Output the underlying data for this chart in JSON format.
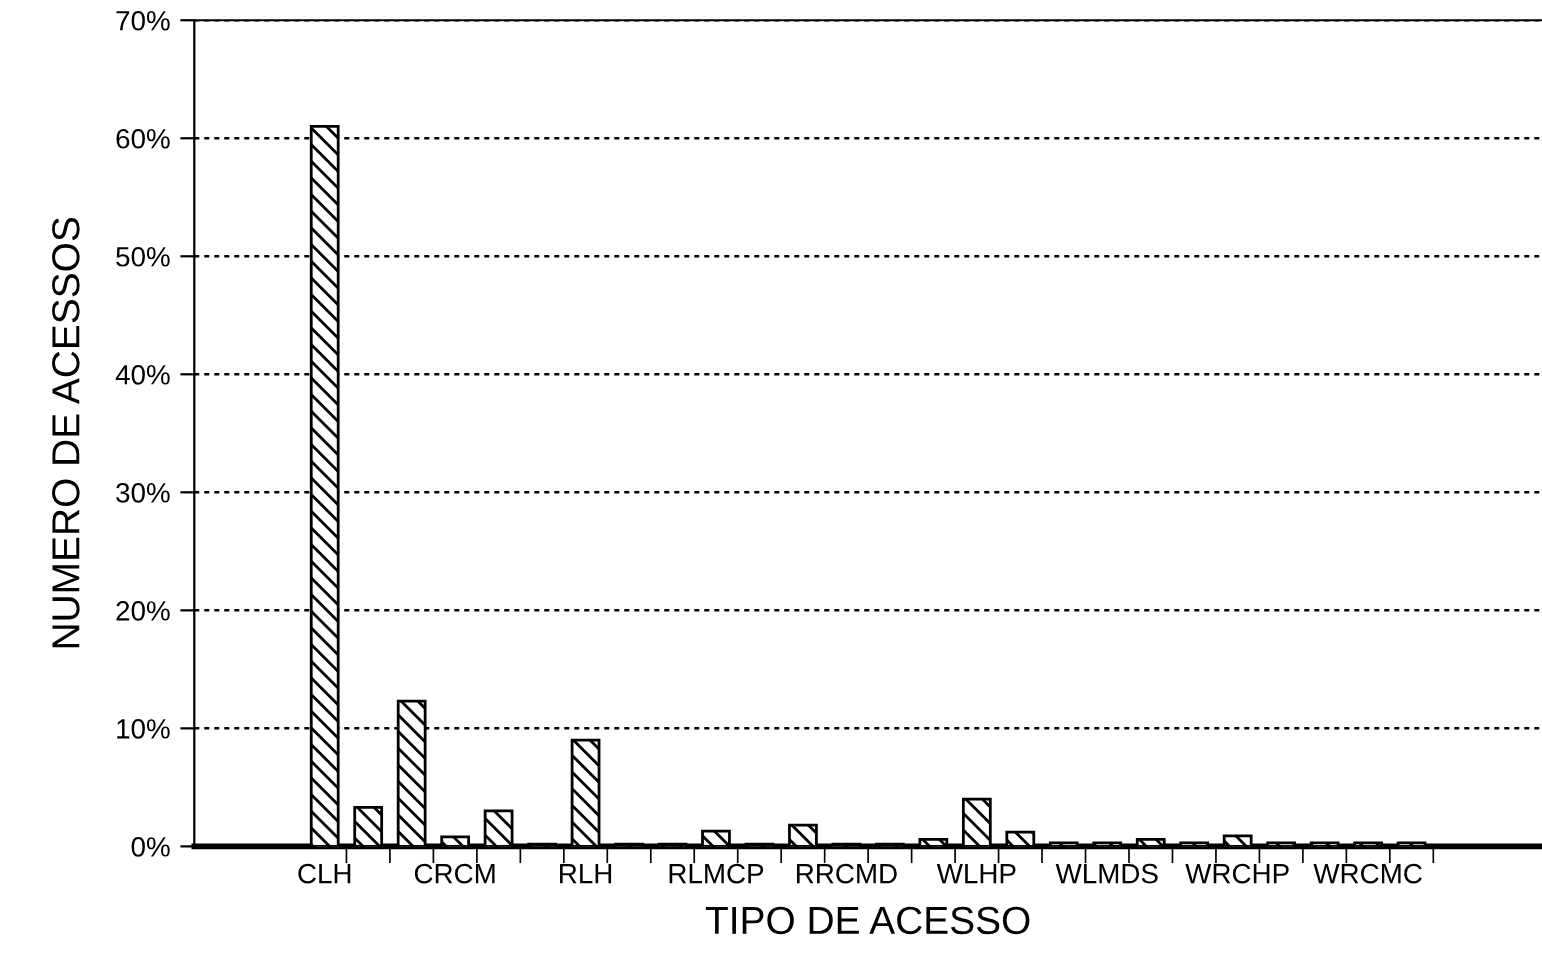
{
  "chart_data": {
    "type": "bar",
    "xlabel": "TIPO DE ACESSO",
    "ylabel": "NUMERO DE ACESSOS",
    "categories": [
      "CLH",
      null,
      null,
      "CRCM",
      null,
      null,
      "RLH",
      null,
      null,
      "RLMCP",
      null,
      null,
      "RRCMD",
      null,
      null,
      "WLHP",
      null,
      null,
      "WLMDS",
      null,
      null,
      "WRCHP",
      null,
      null,
      "WRCMC",
      null
    ],
    "values": [
      61,
      3.3,
      12.3,
      0.8,
      3.0,
      0.2,
      9.0,
      0.2,
      0.2,
      1.3,
      0.2,
      1.8,
      0.2,
      0.2,
      0.6,
      4.0,
      1.2,
      0.3,
      0.3,
      0.6,
      0.3,
      0.9,
      0.3,
      0.3,
      0.3,
      0.3
    ],
    "color": "#000000",
    "ylim": [
      0,
      70
    ],
    "yticks": [
      {
        "value": 0,
        "label": "0%"
      },
      {
        "value": 10,
        "label": "10%"
      },
      {
        "value": 20,
        "label": "20%"
      },
      {
        "value": 30,
        "label": "30%"
      },
      {
        "value": 40,
        "label": "40%"
      },
      {
        "value": 50,
        "label": "50%"
      },
      {
        "value": 60,
        "label": "60%"
      },
      {
        "value": 70,
        "label": "70%"
      }
    ],
    "grid": "y"
  }
}
